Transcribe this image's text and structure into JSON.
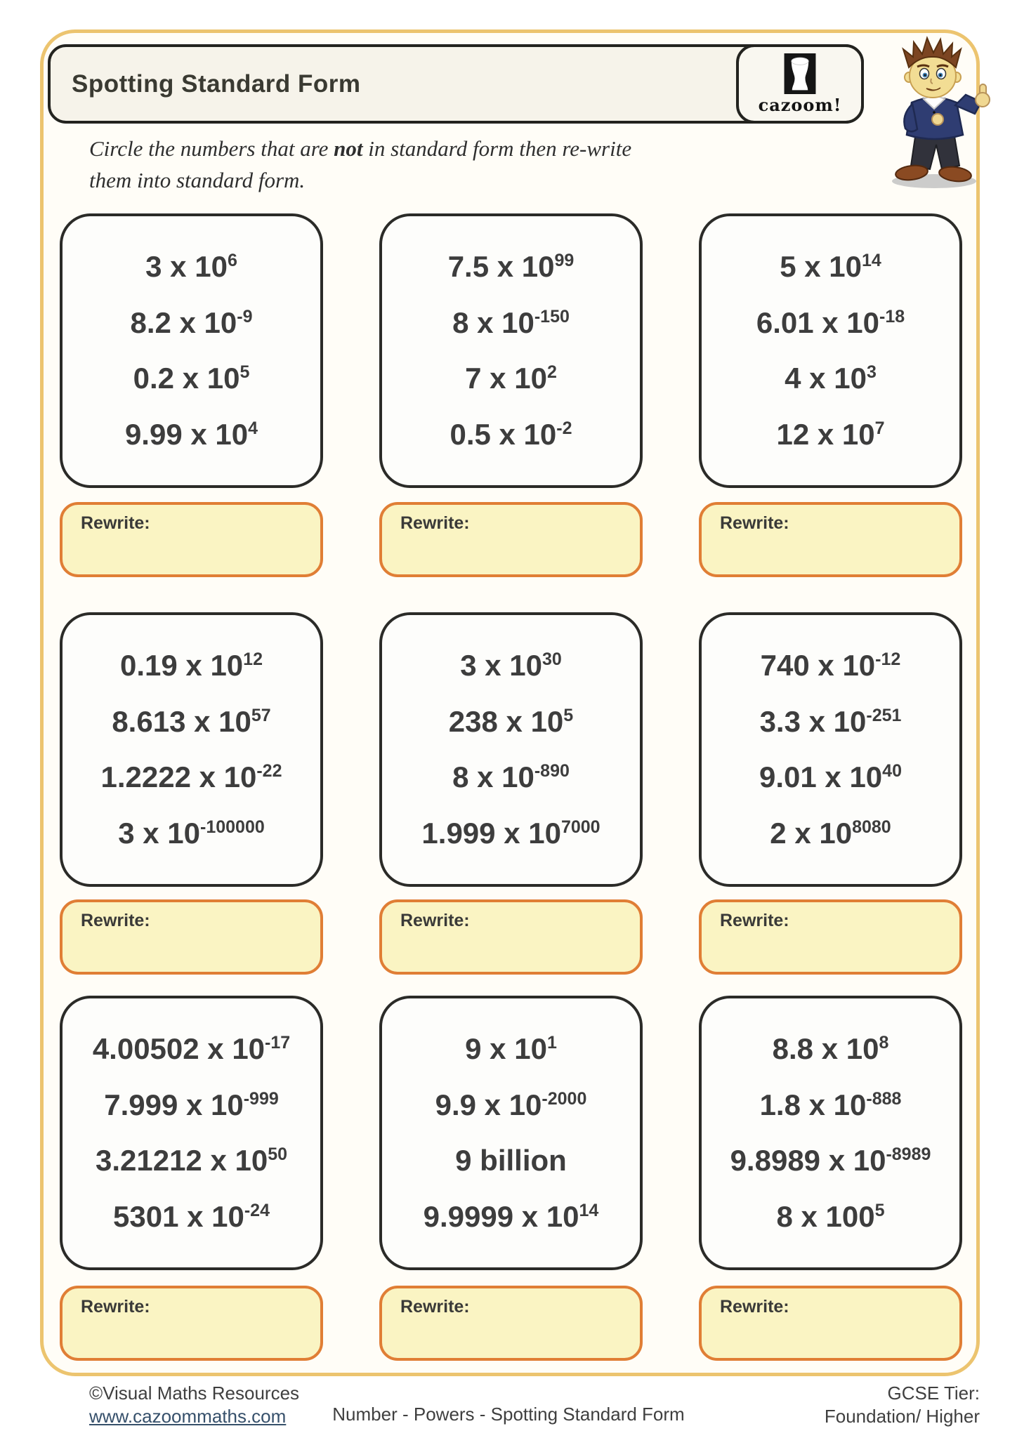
{
  "header": {
    "title": "Spotting Standard Form",
    "logo_text": "cazoom!"
  },
  "instruction": {
    "pre": "Circle the numbers that are ",
    "emphasis": "not",
    "post": " in standard form then re-write them into standard form."
  },
  "rewrite_label": "Rewrite:",
  "cards": [
    {
      "items": [
        {
          "text": "3 x 10",
          "sup": "6"
        },
        {
          "text": "8.2 x 10",
          "sup": "-9"
        },
        {
          "text": "0.2 x 10",
          "sup": "5"
        },
        {
          "text": "9.99 x 10",
          "sup": "4"
        }
      ]
    },
    {
      "items": [
        {
          "text": "7.5 x 10",
          "sup": "99"
        },
        {
          "text": "8 x 10",
          "sup": "-150"
        },
        {
          "text": "7 x 10",
          "sup": "2"
        },
        {
          "text": "0.5 x 10",
          "sup": "-2"
        }
      ]
    },
    {
      "items": [
        {
          "text": "5 x 10",
          "sup": "14"
        },
        {
          "text": "6.01 x 10",
          "sup": "-18"
        },
        {
          "text": "4 x 10",
          "sup": "3"
        },
        {
          "text": "12 x 10",
          "sup": "7"
        }
      ]
    },
    {
      "items": [
        {
          "text": "0.19 x 10",
          "sup": "12"
        },
        {
          "text": "8.613 x 10",
          "sup": "57"
        },
        {
          "text": "1.2222 x 10",
          "sup": "-22"
        },
        {
          "text": "3 x 10",
          "sup": "-100000"
        }
      ]
    },
    {
      "items": [
        {
          "text": "3 x 10",
          "sup": "30"
        },
        {
          "text": "238 x 10",
          "sup": "5"
        },
        {
          "text": "8 x 10",
          "sup": "-890"
        },
        {
          "text": "1.999 x 10",
          "sup": "7000"
        }
      ]
    },
    {
      "items": [
        {
          "text": "740 x 10",
          "sup": "-12"
        },
        {
          "text": "3.3 x 10",
          "sup": "-251"
        },
        {
          "text": "9.01 x 10",
          "sup": "40"
        },
        {
          "text": "2 x 10",
          "sup": "8080"
        }
      ]
    },
    {
      "items": [
        {
          "text": "4.00502 x 10",
          "sup": "-17"
        },
        {
          "text": "7.999 x 10",
          "sup": "-999"
        },
        {
          "text": "3.21212 x 10",
          "sup": "50"
        },
        {
          "text": "5301 x 10",
          "sup": "-24"
        }
      ]
    },
    {
      "items": [
        {
          "text": "9 x 10",
          "sup": "1"
        },
        {
          "text": "9.9 x 10",
          "sup": "-2000"
        },
        {
          "text": "9 billion",
          "sup": ""
        },
        {
          "text": "9.9999 x 10",
          "sup": "14"
        }
      ]
    },
    {
      "items": [
        {
          "text": "8.8 x 10",
          "sup": "8"
        },
        {
          "text": "1.8 x 10",
          "sup": "-888"
        },
        {
          "text": "9.8989 x 10",
          "sup": "-8989"
        },
        {
          "text": "8 x 100",
          "sup": "5"
        }
      ]
    }
  ],
  "footer": {
    "copyright": "©Visual Maths Resources",
    "website": "www.cazoommaths.com",
    "center": "Number - Powers - Spotting Standard Form",
    "tier_label": "GCSE Tier:",
    "tier_value": "Foundation/ Higher"
  },
  "colors": {
    "frame_gold": "#ecc46f",
    "rewrite_border": "#e07e35",
    "rewrite_fill": "#faf4c3",
    "card_border": "#2b2b28",
    "text_dark": "#3d3d3d"
  }
}
